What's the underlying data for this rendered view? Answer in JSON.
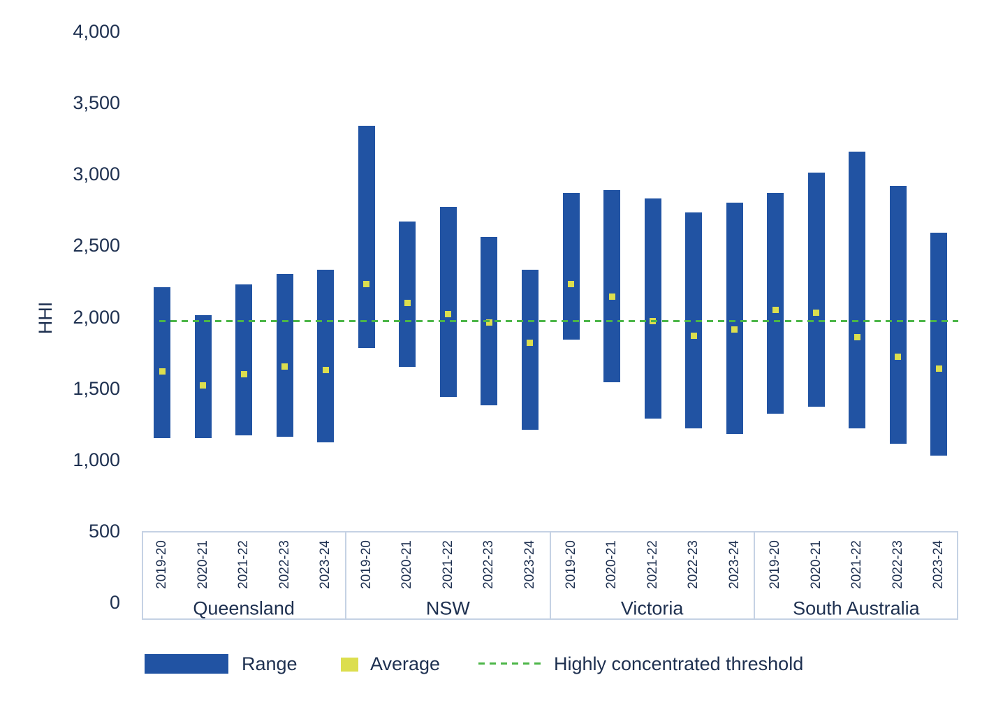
{
  "figure": {
    "y_axis_label": "HHI",
    "y_tick_labels": [
      "4,000",
      "3,500",
      "3,000",
      "2,500",
      "2,000",
      "1,500",
      "1,000",
      "500",
      "0"
    ]
  },
  "legend": {
    "range_label": "Range",
    "average_label": "Average",
    "threshold_label": "Highly concentrated threshold"
  },
  "colors": {
    "bar_blue": "#2153a3",
    "average_yellow": "#dcde4e",
    "threshold_green": "#4cb648",
    "text_navy": "#1e3050",
    "box_border": "#c5d2e4"
  },
  "chart_data": {
    "type": "bar",
    "subtype": "floating-range-bars-with-average-markers",
    "title": "",
    "xlabel": "",
    "ylabel": "HHI",
    "ylim": [
      0,
      4000
    ],
    "y_ticks": [
      4000,
      3500,
      3000,
      2500,
      2000,
      1500,
      1000,
      500,
      0
    ],
    "grid": false,
    "legend_position": "bottom",
    "threshold": {
      "label": "Highly concentrated threshold",
      "value": 2000
    },
    "years": [
      "2019-20",
      "2020-21",
      "2021-22",
      "2022-23",
      "2023-24"
    ],
    "groups": [
      {
        "state": "Queensland",
        "bars": [
          {
            "year": "2019-20",
            "min": 1150,
            "max": 2210,
            "avg": 1620
          },
          {
            "year": "2020-21",
            "min": 1150,
            "max": 2010,
            "avg": 1520
          },
          {
            "year": "2021-22",
            "min": 1170,
            "max": 2230,
            "avg": 1600
          },
          {
            "year": "2022-23",
            "min": 1160,
            "max": 2300,
            "avg": 1650
          },
          {
            "year": "2023-24",
            "min": 1120,
            "max": 2330,
            "avg": 1630
          }
        ]
      },
      {
        "state": "NSW",
        "bars": [
          {
            "year": "2019-20",
            "min": 1780,
            "max": 3340,
            "avg": 2230
          },
          {
            "year": "2020-21",
            "min": 1650,
            "max": 2670,
            "avg": 2100
          },
          {
            "year": "2021-22",
            "min": 1440,
            "max": 2770,
            "avg": 2020
          },
          {
            "year": "2022-23",
            "min": 1380,
            "max": 2560,
            "avg": 1960
          },
          {
            "year": "2023-24",
            "min": 1210,
            "max": 2330,
            "avg": 1820
          }
        ]
      },
      {
        "state": "Victoria",
        "bars": [
          {
            "year": "2019-20",
            "min": 1840,
            "max": 2870,
            "avg": 2230
          },
          {
            "year": "2020-21",
            "min": 1540,
            "max": 2890,
            "avg": 2140
          },
          {
            "year": "2021-22",
            "min": 1290,
            "max": 2830,
            "avg": 1970
          },
          {
            "year": "2022-23",
            "min": 1220,
            "max": 2730,
            "avg": 1870
          },
          {
            "year": "2023-24",
            "min": 1180,
            "max": 2800,
            "avg": 1910
          }
        ]
      },
      {
        "state": "South Australia",
        "bars": [
          {
            "year": "2019-20",
            "min": 1320,
            "max": 2870,
            "avg": 2050
          },
          {
            "year": "2020-21",
            "min": 1370,
            "max": 3010,
            "avg": 2030
          },
          {
            "year": "2021-22",
            "min": 1220,
            "max": 3160,
            "avg": 1860
          },
          {
            "year": "2022-23",
            "min": 1110,
            "max": 2920,
            "avg": 1720
          },
          {
            "year": "2023-24",
            "min": 1030,
            "max": 2590,
            "avg": 1640
          }
        ]
      }
    ]
  }
}
